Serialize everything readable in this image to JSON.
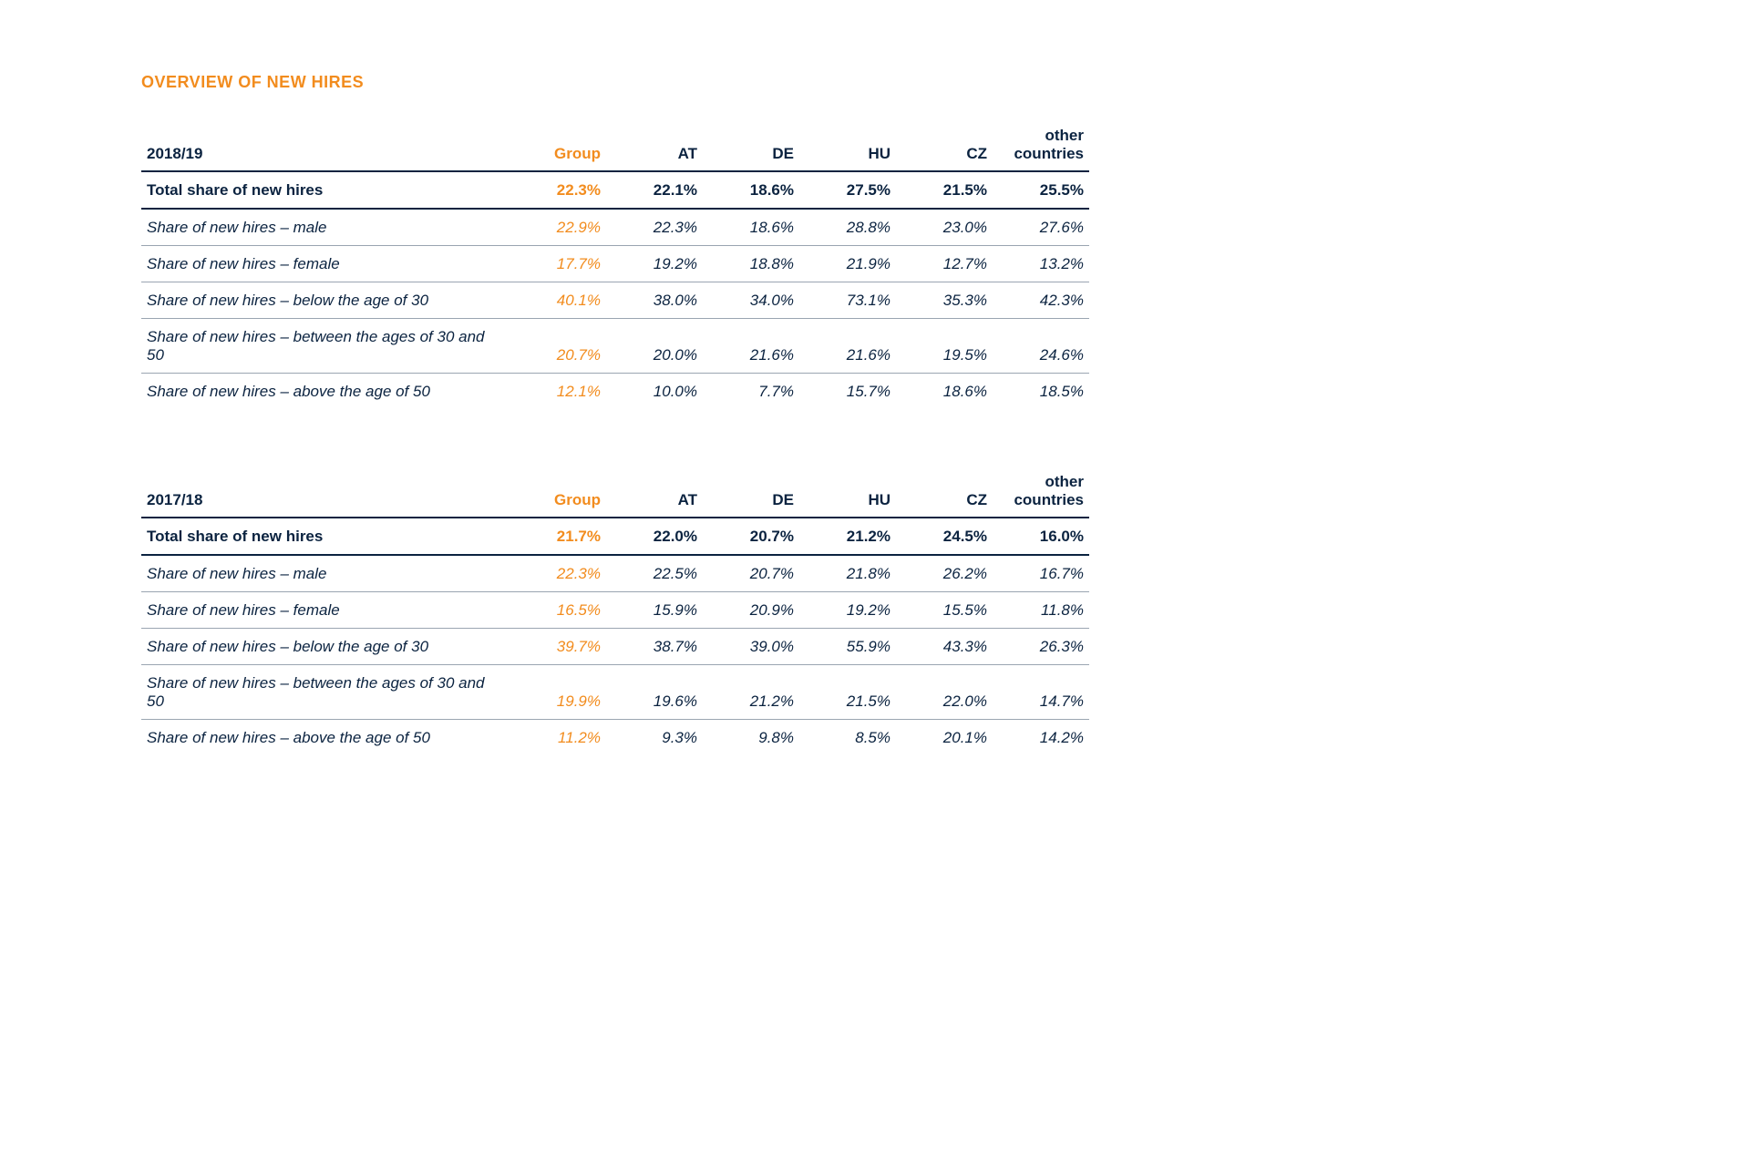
{
  "colors": {
    "accent": "#f28c1e",
    "heading_text": "#0b2340",
    "body_text": "#0b2340",
    "row_border": "#9aa5b1",
    "thick_border": "#0b2340",
    "background": "#ffffff"
  },
  "title": "OVERVIEW OF NEW HIRES",
  "columns": [
    "Group",
    "AT",
    "DE",
    "HU",
    "CZ",
    "other\ncountries"
  ],
  "tables": [
    {
      "period": "2018/19",
      "total": {
        "label": "Total share of new hires",
        "values": [
          "22.3%",
          "22.1%",
          "18.6%",
          "27.5%",
          "21.5%",
          "25.5%"
        ]
      },
      "rows": [
        {
          "label": "Share of new hires – male",
          "values": [
            "22.9%",
            "22.3%",
            "18.6%",
            "28.8%",
            "23.0%",
            "27.6%"
          ]
        },
        {
          "label": "Share of new hires – female",
          "values": [
            "17.7%",
            "19.2%",
            "18.8%",
            "21.9%",
            "12.7%",
            "13.2%"
          ]
        },
        {
          "label": "Share of new hires – below the age of 30",
          "values": [
            "40.1%",
            "38.0%",
            "34.0%",
            "73.1%",
            "35.3%",
            "42.3%"
          ]
        },
        {
          "label": "Share of new hires – between the ages of 30 and 50",
          "values": [
            "20.7%",
            "20.0%",
            "21.6%",
            "21.6%",
            "19.5%",
            "24.6%"
          ]
        },
        {
          "label": "Share of new hires – above the age of 50",
          "values": [
            "12.1%",
            "10.0%",
            "7.7%",
            "15.7%",
            "18.6%",
            "18.5%"
          ]
        }
      ]
    },
    {
      "period": "2017/18",
      "total": {
        "label": "Total share of new hires",
        "values": [
          "21.7%",
          "22.0%",
          "20.7%",
          "21.2%",
          "24.5%",
          "16.0%"
        ]
      },
      "rows": [
        {
          "label": "Share of new hires – male",
          "values": [
            "22.3%",
            "22.5%",
            "20.7%",
            "21.8%",
            "26.2%",
            "16.7%"
          ]
        },
        {
          "label": "Share of new hires – female",
          "values": [
            "16.5%",
            "15.9%",
            "20.9%",
            "19.2%",
            "15.5%",
            "11.8%"
          ]
        },
        {
          "label": "Share of new hires – below the age of 30",
          "values": [
            "39.7%",
            "38.7%",
            "39.0%",
            "55.9%",
            "43.3%",
            "26.3%"
          ]
        },
        {
          "label": "Share of new hires – between the ages of 30 and 50",
          "values": [
            "19.9%",
            "19.6%",
            "21.2%",
            "21.5%",
            "22.0%",
            "14.7%"
          ]
        },
        {
          "label": "Share of new hires – above the age of 50",
          "values": [
            "11.2%",
            "9.3%",
            "9.8%",
            "8.5%",
            "20.1%",
            "14.2%"
          ]
        }
      ]
    }
  ]
}
